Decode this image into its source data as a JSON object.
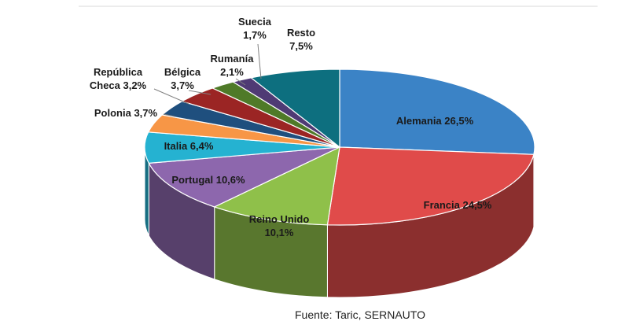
{
  "chart_data": {
    "type": "pie",
    "title": "",
    "style": "3d",
    "source": "Fuente: Taric, SERNAUTO",
    "slices": [
      {
        "name": "Alemania",
        "value": 26.5,
        "label_lines": [
          "Alemania 26,5%"
        ],
        "color": "#3b83c6"
      },
      {
        "name": "Francia",
        "value": 24.5,
        "label_lines": [
          "Francia 24,5%"
        ],
        "color": "#e04b4a"
      },
      {
        "name": "Reino Unido",
        "value": 10.1,
        "label_lines": [
          "Reino Unido",
          "10,1%"
        ],
        "color": "#8fc04a"
      },
      {
        "name": "Portugal",
        "value": 10.6,
        "label_lines": [
          "Portugal 10,6%"
        ],
        "color": "#8d67ad"
      },
      {
        "name": "Italia",
        "value": 6.4,
        "label_lines": [
          "Italia 6,4%"
        ],
        "color": "#25b2d1"
      },
      {
        "name": "Polonia",
        "value": 3.7,
        "label_lines": [
          "Polonia 3,7%"
        ],
        "color": "#f79646"
      },
      {
        "name": "República Checa",
        "value": 3.2,
        "label_lines": [
          "República",
          "Checa 3,2%"
        ],
        "color": "#1f4f7e"
      },
      {
        "name": "Bélgica",
        "value": 3.7,
        "label_lines": [
          "Bélgica",
          "3,7%"
        ],
        "color": "#9b2524"
      },
      {
        "name": "Rumanía",
        "value": 2.1,
        "label_lines": [
          "Rumanía",
          "2,1%"
        ],
        "color": "#4f7a28"
      },
      {
        "name": "Suecia",
        "value": 1.7,
        "label_lines": [
          "Suecia",
          "1,7%"
        ],
        "color": "#4f3a74"
      },
      {
        "name": "Resto",
        "value": 7.5,
        "label_lines": [
          "Resto",
          "7,5%"
        ],
        "color": "#0d6f7f"
      }
    ]
  }
}
